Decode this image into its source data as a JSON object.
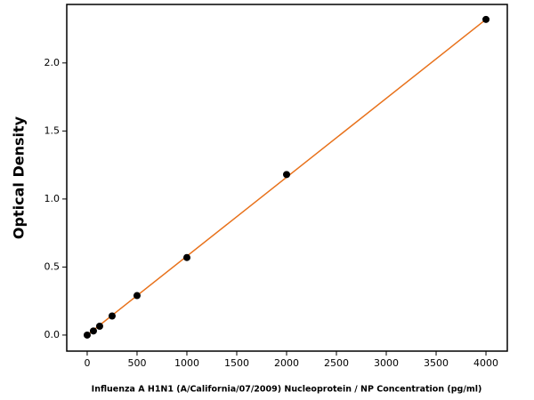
{
  "chart_data": {
    "type": "scatter",
    "x_label": "Influenza A H1N1 (A/California/07/2009) Nucleoprotein / NP Concentration (pg/ml)",
    "y_label": "Optical Density",
    "x": [
      0,
      62.5,
      125,
      250,
      500,
      1000,
      2000,
      4000
    ],
    "y": [
      0.0,
      0.03,
      0.065,
      0.14,
      0.29,
      0.57,
      1.18,
      2.32
    ],
    "point_color": "#000000",
    "fit_line": {
      "x": [
        0,
        4000
      ],
      "y": [
        0.0,
        2.32
      ],
      "color": "#e8711a"
    },
    "xlim": [
      -205,
      4214
    ],
    "ylim": [
      -0.118,
      2.43
    ],
    "xticks": [
      0,
      500,
      1000,
      1500,
      2000,
      2500,
      3000,
      3500,
      4000
    ],
    "yticks": [
      {
        "value": 0,
        "label": "0.0"
      },
      {
        "value": 0.5,
        "label": "0.5"
      },
      {
        "value": 1,
        "label": "1.0"
      },
      {
        "value": 1.5,
        "label": "1.5"
      },
      {
        "value": 2,
        "label": "2.0"
      }
    ]
  }
}
